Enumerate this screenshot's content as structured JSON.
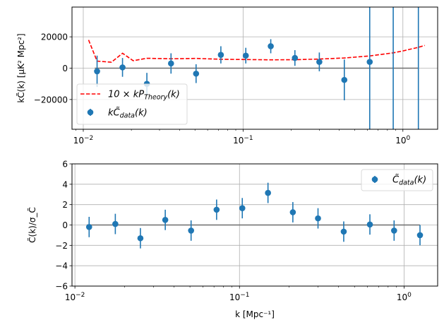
{
  "chart_data": [
    {
      "type": "scatter",
      "panel": "top",
      "ylabel": "kC̃(k) [μK² Mpc²]",
      "xlabel": "",
      "xscale": "log",
      "xlim": [
        0.0085,
        1.65
      ],
      "ylim": [
        -39000,
        39000
      ],
      "grid": true,
      "x_ticks": [
        {
          "value": 0.01,
          "label": "10",
          "exp": "−2"
        },
        {
          "value": 0.1,
          "label": "10",
          "exp": "−1"
        },
        {
          "value": 1,
          "label": "10",
          "exp": "0"
        }
      ],
      "y_ticks": [
        {
          "value": 20000,
          "label": "20000"
        },
        {
          "value": 0,
          "label": "0"
        },
        {
          "value": -20000,
          "label": "−20000"
        }
      ],
      "legend_position": "lower-left",
      "reference_line": {
        "y": 0,
        "x_range": [
          0.0118,
          1.25
        ],
        "color": "#6e6e6e"
      },
      "series": [
        {
          "name": "10 × kP_Theory(k)",
          "legend_label": {
            "prefix": "10 × kP",
            "sub": "Theory",
            "suffix": "(k)"
          },
          "style": "dashed-line",
          "color": "#ff0000",
          "x": [
            0.0108,
            0.0122,
            0.015,
            0.0176,
            0.0205,
            0.025,
            0.0354,
            0.0508,
            0.0726,
            0.104,
            0.149,
            0.211,
            0.3,
            0.43,
            0.62,
            0.87,
            1.0,
            1.25,
            1.37
          ],
          "y": [
            18000,
            4500,
            3800,
            9500,
            4800,
            6300,
            6000,
            6200,
            5700,
            5500,
            5300,
            5400,
            5800,
            6500,
            7800,
            9800,
            11000,
            13300,
            14500
          ]
        },
        {
          "name": "kC̃_data(k)",
          "legend_label": {
            "prefix": "kC̃",
            "sub": "data",
            "suffix": "(k)"
          },
          "style": "errorbar",
          "color": "#1f77b4",
          "x": [
            0.0122,
            0.0176,
            0.025,
            0.0354,
            0.0508,
            0.0726,
            0.104,
            0.149,
            0.211,
            0.3,
            0.43,
            0.62,
            0.87,
            1.25
          ],
          "y": [
            -2000,
            500,
            -10000,
            3000,
            -3500,
            8500,
            8000,
            14000,
            6500,
            4000,
            -7500,
            4000,
            null,
            null
          ],
          "yerr": [
            10000,
            6000,
            7000,
            6500,
            6000,
            5500,
            5000,
            4500,
            5000,
            6000,
            13000,
            60000,
            60000,
            60000
          ]
        }
      ]
    },
    {
      "type": "scatter",
      "panel": "bottom",
      "ylabel": "C̃(k)/σ_C̃",
      "xlabel": "k [Mpc⁻¹]",
      "xscale": "log",
      "xlim": [
        0.0096,
        1.6
      ],
      "ylim": [
        -6,
        6
      ],
      "grid": true,
      "x_ticks": [
        {
          "value": 0.01,
          "label": "10",
          "exp": "−2"
        },
        {
          "value": 0.1,
          "label": "10",
          "exp": "−1"
        },
        {
          "value": 1,
          "label": "10",
          "exp": "0"
        }
      ],
      "y_ticks": [
        {
          "value": 6,
          "label": "6"
        },
        {
          "value": 4,
          "label": "4"
        },
        {
          "value": 2,
          "label": "2"
        },
        {
          "value": 0,
          "label": "0"
        },
        {
          "value": -2,
          "label": "−2"
        },
        {
          "value": -4,
          "label": "−4"
        },
        {
          "value": -6,
          "label": "−6"
        }
      ],
      "legend_position": "upper-right",
      "reference_line": {
        "y": 0,
        "x_range": [
          0.0118,
          1.25
        ],
        "color": "#6e6e6e"
      },
      "series": [
        {
          "name": "C̃_data(k)",
          "legend_label": {
            "prefix": "C̃",
            "sub": "data",
            "suffix": "(k)"
          },
          "style": "errorbar",
          "color": "#1f77b4",
          "x": [
            0.0122,
            0.0176,
            0.025,
            0.0354,
            0.0508,
            0.0726,
            0.104,
            0.149,
            0.211,
            0.3,
            0.43,
            0.62,
            0.87,
            1.25
          ],
          "y": [
            -0.2,
            0.1,
            -1.3,
            0.5,
            -0.55,
            1.5,
            1.65,
            3.15,
            1.25,
            0.65,
            -0.65,
            0.05,
            -0.55,
            -1.0
          ],
          "yerr": [
            1,
            1,
            1,
            1,
            1,
            1,
            1,
            1,
            1,
            1,
            1,
            1,
            1,
            1
          ]
        }
      ]
    }
  ]
}
